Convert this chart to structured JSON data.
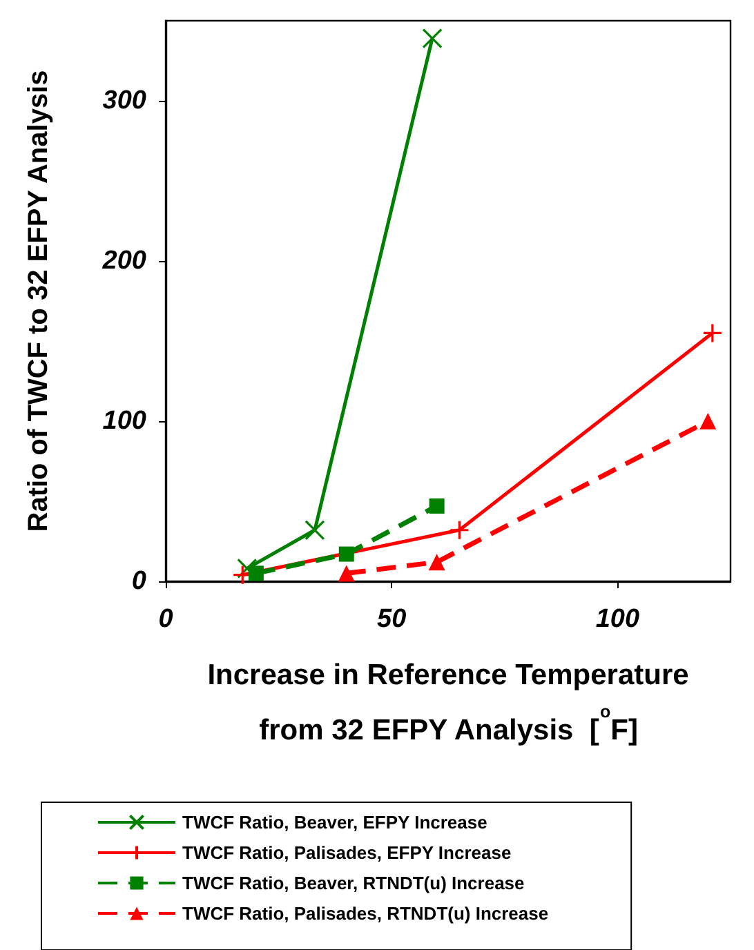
{
  "chart_data": {
    "type": "line",
    "xlabel": "Increase in Reference Temperature\nfrom 32 EFPY Analysis  [$^{o}$F]",
    "ylabel": "Ratio of TWCF to 32 EFPY Analysis",
    "xlim": [
      0,
      125
    ],
    "xticks": [
      0,
      50,
      100
    ],
    "ylim": [
      0,
      350
    ],
    "yticks": [
      0,
      100,
      200,
      300
    ],
    "grid": false,
    "legend": "bottom",
    "series": [
      {
        "name": "TWCF Ratio, Beaver, EFPY Increase",
        "color": "#008000",
        "marker": "cross",
        "line_style": "solid",
        "x": [
          18,
          33,
          59
        ],
        "values": [
          8,
          32,
          339
        ]
      },
      {
        "name": "TWCF Ratio, Palisades, EFPY Increase",
        "color": "#ff0000",
        "marker": "plus",
        "line_style": "solid",
        "x": [
          17,
          65,
          121
        ],
        "values": [
          4,
          32,
          155
        ]
      },
      {
        "name": "TWCF Ratio, Beaver, RTNDT(u) Increase",
        "color": "#008000",
        "marker": "square",
        "line_style": "dashed",
        "x": [
          20,
          40,
          60
        ],
        "values": [
          5,
          17,
          47
        ]
      },
      {
        "name": "TWCF Ratio, Palisades, RTNDT(u) Increase",
        "color": "#ff0000",
        "marker": "triangle",
        "line_style": "dashed",
        "x": [
          40,
          60,
          120
        ],
        "values": [
          5,
          12,
          100
        ]
      }
    ]
  }
}
